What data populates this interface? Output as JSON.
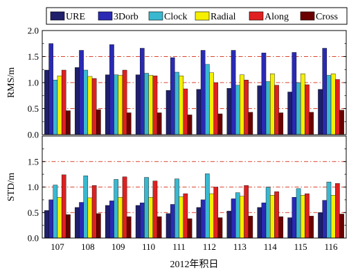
{
  "chart_data": {
    "type": "bar",
    "categories": [
      "107",
      "108",
      "109",
      "110",
      "111",
      "112",
      "113",
      "114",
      "115",
      "116"
    ],
    "xlabel": "2012年积日",
    "legend": {
      "placement": "top",
      "columns": 6
    },
    "colors": {
      "URE": "#1f1f6b",
      "3Dorb": "#2a2ab5",
      "Clock": "#39b8d0",
      "Radial": "#f5ef00",
      "Along": "#e02020",
      "Cross": "#6b0000"
    },
    "reference_line_color": "#d9422a",
    "panels": [
      {
        "ylabel": "RMS/m",
        "ylim": [
          0,
          2.0
        ],
        "yticks": [
          "0.0",
          "0.5",
          "1.0",
          "1.5",
          "2.0"
        ],
        "reference_lines": [
          0.5,
          1.0,
          1.5
        ],
        "series": [
          {
            "name": "URE",
            "values": [
              1.24,
              1.29,
              1.15,
              1.15,
              0.85,
              0.87,
              0.89,
              0.94,
              0.82,
              0.87
            ]
          },
          {
            "name": "3Dorb",
            "values": [
              1.75,
              1.62,
              1.73,
              1.66,
              1.48,
              1.62,
              1.62,
              1.57,
              1.58,
              1.66
            ]
          },
          {
            "name": "Clock",
            "values": [
              1.05,
              1.24,
              1.15,
              1.18,
              1.2,
              1.35,
              0.95,
              1.02,
              1.0,
              1.14
            ]
          },
          {
            "name": "Radial",
            "values": [
              1.13,
              1.12,
              1.14,
              1.14,
              1.13,
              1.19,
              1.15,
              1.17,
              1.17,
              1.17
            ]
          },
          {
            "name": "Along",
            "values": [
              1.24,
              1.08,
              1.24,
              1.13,
              0.88,
              1.0,
              1.05,
              0.95,
              0.96,
              1.06
            ]
          },
          {
            "name": "Cross",
            "values": [
              0.46,
              0.48,
              0.42,
              0.42,
              0.38,
              0.4,
              0.43,
              0.42,
              0.43,
              0.47
            ]
          }
        ]
      },
      {
        "ylabel": "STD/m",
        "ylim": [
          0,
          2.0
        ],
        "yticks": [
          "0.0",
          "0.5",
          "1.0",
          "1.5",
          ""
        ],
        "reference_lines": [
          0.5,
          1.0,
          1.5
        ],
        "series": [
          {
            "name": "URE",
            "values": [
              0.54,
              0.6,
              0.64,
              0.64,
              0.48,
              0.6,
              0.53,
              0.6,
              0.4,
              0.5
            ]
          },
          {
            "name": "3Dorb",
            "values": [
              0.75,
              0.7,
              0.73,
              0.69,
              0.66,
              0.75,
              0.77,
              0.69,
              0.8,
              0.74
            ]
          },
          {
            "name": "Clock",
            "values": [
              1.04,
              1.22,
              1.15,
              1.19,
              1.16,
              1.26,
              0.89,
              1.0,
              0.97,
              1.1
            ]
          },
          {
            "name": "Radial",
            "values": [
              0.8,
              0.79,
              0.8,
              0.8,
              0.81,
              0.87,
              0.82,
              0.84,
              0.84,
              0.84
            ]
          },
          {
            "name": "Along",
            "values": [
              1.24,
              1.03,
              1.2,
              1.12,
              0.87,
              1.0,
              1.03,
              0.91,
              0.87,
              1.07
            ]
          },
          {
            "name": "Cross",
            "values": [
              0.46,
              0.48,
              0.42,
              0.42,
              0.38,
              0.4,
              0.43,
              0.42,
              0.43,
              0.47
            ]
          }
        ]
      }
    ]
  }
}
